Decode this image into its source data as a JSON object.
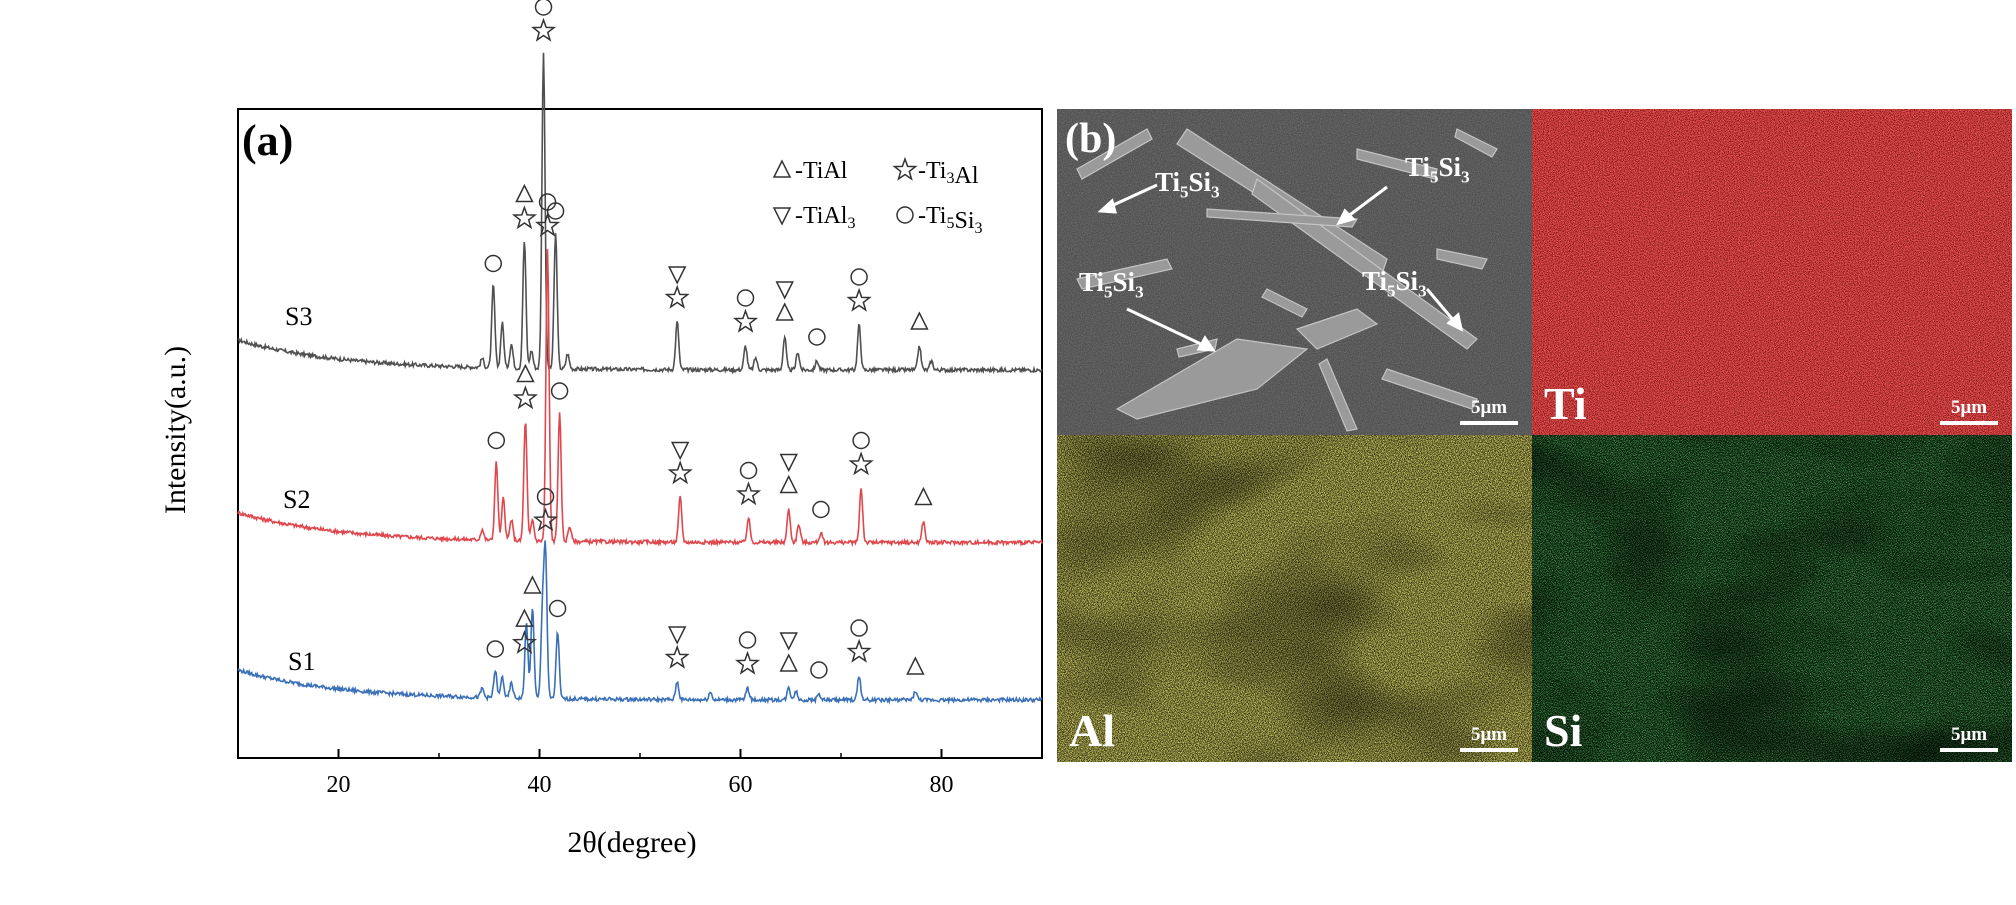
{
  "chart_data": {
    "type": "line",
    "panel_label": "(a)",
    "xlabel": "2θ(degree)",
    "ylabel": "Intensity(a.u.)",
    "xlim": [
      10,
      90
    ],
    "xticks": [
      20,
      40,
      60,
      80
    ],
    "grid": false,
    "legend": {
      "placement": "top-right",
      "entries": [
        {
          "symbol": "triangle-up",
          "phase": "TiAl",
          "label": "-TiAl"
        },
        {
          "symbol": "star",
          "phase": "Ti3Al",
          "label": "-Ti₃Al"
        },
        {
          "symbol": "triangle-down",
          "phase": "TiAl3",
          "label": "-TiAl₃"
        },
        {
          "symbol": "circle",
          "phase": "Ti5Si3",
          "label": "-Ti₅Si₃"
        }
      ]
    },
    "series": [
      {
        "name": "S3",
        "color": "#505050",
        "offset": 2.2,
        "baseline": 0.0,
        "peaks": [
          [
            34.3,
            0.06
          ],
          [
            35.4,
            0.55
          ],
          [
            36.3,
            0.3
          ],
          [
            37.2,
            0.16
          ],
          [
            38.5,
            0.85
          ],
          [
            39.2,
            0.12
          ],
          [
            40.4,
            2.1
          ],
          [
            41.6,
            0.9
          ],
          [
            42.8,
            0.1
          ],
          [
            53.7,
            0.32
          ],
          [
            60.5,
            0.16
          ],
          [
            61.5,
            0.08
          ],
          [
            64.4,
            0.22
          ],
          [
            65.7,
            0.12
          ],
          [
            67.6,
            0.06
          ],
          [
            71.8,
            0.3
          ],
          [
            77.8,
            0.16
          ],
          [
            79.0,
            0.06
          ]
        ],
        "markers": [
          {
            "x": 35.4,
            "symbols": [
              "circle"
            ]
          },
          {
            "x": 38.5,
            "symbols": [
              "star",
              "triangle-up"
            ]
          },
          {
            "x": 40.4,
            "symbols": [
              "star",
              "circle"
            ]
          },
          {
            "x": 41.6,
            "symbols": [
              "circle"
            ]
          },
          {
            "x": 53.7,
            "symbols": [
              "star",
              "triangle-down"
            ]
          },
          {
            "x": 60.5,
            "symbols": [
              "star",
              "circle"
            ]
          },
          {
            "x": 64.4,
            "symbols": [
              "triangle-up",
              "triangle-down"
            ]
          },
          {
            "x": 67.6,
            "symbols": [
              "circle"
            ]
          },
          {
            "x": 71.8,
            "symbols": [
              "star",
              "circle"
            ]
          },
          {
            "x": 77.8,
            "symbols": [
              "triangle-up"
            ]
          }
        ]
      },
      {
        "name": "S2",
        "color": "#e0474c",
        "offset": 1.05,
        "baseline": 0.0,
        "peaks": [
          [
            34.3,
            0.07
          ],
          [
            35.7,
            0.52
          ],
          [
            36.4,
            0.28
          ],
          [
            37.2,
            0.14
          ],
          [
            38.6,
            0.8
          ],
          [
            39.3,
            0.14
          ],
          [
            40.8,
            1.95
          ],
          [
            42.0,
            0.85
          ],
          [
            43.0,
            0.1
          ],
          [
            54.0,
            0.3
          ],
          [
            60.8,
            0.16
          ],
          [
            64.8,
            0.22
          ],
          [
            65.8,
            0.12
          ],
          [
            68.0,
            0.06
          ],
          [
            72.0,
            0.36
          ],
          [
            78.2,
            0.14
          ]
        ],
        "markers": [
          {
            "x": 35.7,
            "symbols": [
              "circle"
            ]
          },
          {
            "x": 38.6,
            "symbols": [
              "star",
              "triangle-up"
            ]
          },
          {
            "x": 40.8,
            "symbols": [
              "star",
              "circle"
            ]
          },
          {
            "x": 42.0,
            "symbols": [
              "circle"
            ]
          },
          {
            "x": 54.0,
            "symbols": [
              "star",
              "triangle-down"
            ]
          },
          {
            "x": 60.8,
            "symbols": [
              "star",
              "circle"
            ]
          },
          {
            "x": 64.8,
            "symbols": [
              "triangle-up",
              "triangle-down"
            ]
          },
          {
            "x": 68.0,
            "symbols": [
              "circle"
            ]
          },
          {
            "x": 72.0,
            "symbols": [
              "star",
              "circle"
            ]
          },
          {
            "x": 78.2,
            "symbols": [
              "triangle-up"
            ]
          }
        ]
      },
      {
        "name": "S1",
        "color": "#3a70b8",
        "offset": 0.0,
        "baseline": 0.0,
        "peaks": [
          [
            34.3,
            0.06
          ],
          [
            35.6,
            0.18
          ],
          [
            36.3,
            0.14
          ],
          [
            37.2,
            0.1
          ],
          [
            38.7,
            0.5
          ],
          [
            39.3,
            0.6
          ],
          [
            40.3,
            0.55
          ],
          [
            40.6,
            0.95
          ],
          [
            41.8,
            0.45
          ],
          [
            53.7,
            0.12
          ],
          [
            57.0,
            0.05
          ],
          [
            60.7,
            0.08
          ],
          [
            64.8,
            0.08
          ],
          [
            65.5,
            0.06
          ],
          [
            67.8,
            0.04
          ],
          [
            71.8,
            0.16
          ],
          [
            77.4,
            0.06
          ]
        ],
        "markers": [
          {
            "x": 35.6,
            "symbols": [
              "circle"
            ]
          },
          {
            "x": 38.5,
            "symbols": [
              "star",
              "triangle-up"
            ]
          },
          {
            "x": 39.3,
            "symbols": [
              "triangle-up"
            ]
          },
          {
            "x": 40.6,
            "symbols": [
              "star",
              "circle"
            ]
          },
          {
            "x": 41.8,
            "symbols": [
              "circle"
            ]
          },
          {
            "x": 53.7,
            "symbols": [
              "star",
              "triangle-down"
            ]
          },
          {
            "x": 60.7,
            "symbols": [
              "star",
              "circle"
            ]
          },
          {
            "x": 64.8,
            "symbols": [
              "triangle-up",
              "triangle-down"
            ]
          },
          {
            "x": 67.8,
            "symbols": [
              "circle"
            ]
          },
          {
            "x": 71.8,
            "symbols": [
              "star",
              "circle"
            ]
          },
          {
            "x": 77.4,
            "symbols": [
              "triangle-up"
            ]
          }
        ]
      }
    ]
  },
  "sem_panel": {
    "panel_label": "(b)",
    "annotations": [
      {
        "base": "Ti",
        "sub1": "5",
        "mid": "Si",
        "sub2": "3"
      },
      {
        "base": "Ti",
        "sub1": "5",
        "mid": "Si",
        "sub2": "3"
      },
      {
        "base": "Ti",
        "sub1": "5",
        "mid": "Si",
        "sub2": "3"
      },
      {
        "base": "Ti",
        "sub1": "5",
        "mid": "Si",
        "sub2": "3"
      }
    ],
    "scale_bar": "5μm"
  },
  "eds_maps": [
    {
      "element": "Ti",
      "color": "#e01818",
      "scale_bar": "5μm"
    },
    {
      "element": "Al",
      "color": "#e8e030",
      "scale_bar": "5μm"
    },
    {
      "element": "Si",
      "color": "#28c838",
      "scale_bar": "5μm"
    }
  ]
}
